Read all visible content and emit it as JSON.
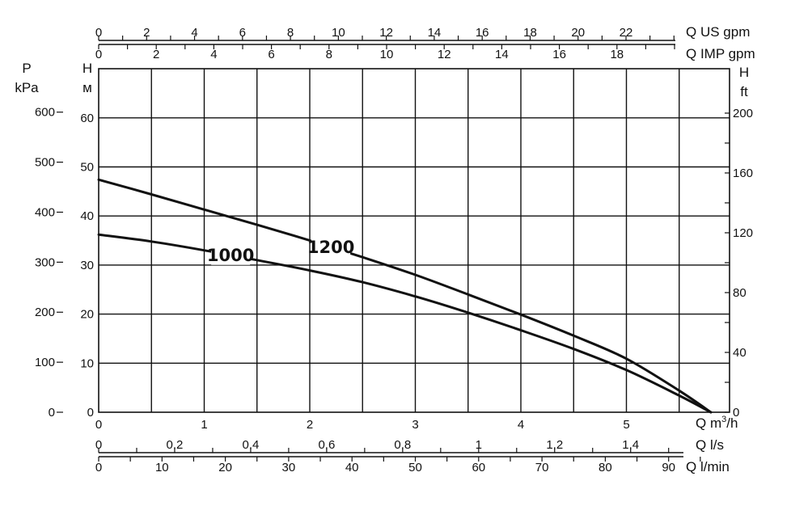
{
  "chart_data": {
    "type": "line",
    "grid": true,
    "x_primary": {
      "unit": "m³/h",
      "label_prefix": "Q m",
      "label_sup": "3",
      "label_suffix": "/h",
      "range": [
        0,
        5.8
      ],
      "ticks": [
        0,
        1,
        2,
        3,
        4,
        5
      ],
      "tick_labels": [
        "0",
        "1",
        "2",
        "3",
        "4",
        "5"
      ],
      "gridlines": [
        0.5,
        1,
        1.5,
        2,
        2.5,
        3,
        3.5,
        4,
        4.5,
        5,
        5.5
      ]
    },
    "x_ls": {
      "label": "Q l/s",
      "factor": 3.6,
      "ticks": [
        0,
        0.2,
        0.4,
        0.6,
        0.8,
        1,
        1.2,
        1.4
      ],
      "tick_labels": [
        "0",
        "0,2",
        "0,4",
        "0,6",
        "0,8",
        "1",
        "1,2",
        "1,4"
      ],
      "minor": [
        0.1,
        0.3,
        0.5,
        0.7,
        0.9,
        1.1,
        1.3,
        1.5
      ]
    },
    "x_lmin": {
      "label": "Q l/min",
      "factor": 0.06,
      "ticks": [
        0,
        10,
        20,
        30,
        40,
        50,
        60,
        70,
        80,
        90
      ],
      "tick_labels": [
        "0",
        "10",
        "20",
        "30",
        "40",
        "50",
        "60",
        "70",
        "80",
        "90"
      ],
      "minor": [
        5,
        15,
        25,
        35,
        45,
        55,
        65,
        75,
        85,
        95
      ]
    },
    "x_usgpm": {
      "label": "Q US gpm",
      "factor": 0.2271,
      "ticks": [
        0,
        2,
        4,
        6,
        8,
        10,
        12,
        14,
        16,
        18,
        20,
        22
      ],
      "tick_labels": [
        "0",
        "2",
        "4",
        "6",
        "8",
        "10",
        "12",
        "14",
        "16",
        "18",
        "20",
        "22"
      ],
      "minor": [
        1,
        3,
        5,
        7,
        9,
        11,
        13,
        15,
        17,
        19,
        21,
        23,
        24
      ]
    },
    "x_impgpm": {
      "label": "Q IMP gpm",
      "factor": 0.2728,
      "ticks": [
        0,
        2,
        4,
        6,
        8,
        10,
        12,
        14,
        16,
        18
      ],
      "tick_labels": [
        "0",
        "2",
        "4",
        "6",
        "8",
        "10",
        "12",
        "14",
        "16",
        "18"
      ],
      "minor": [
        1,
        3,
        5,
        7,
        9,
        11,
        13,
        15,
        17,
        19,
        20
      ]
    },
    "y_head_m": {
      "title": "H",
      "unit": "м",
      "range": [
        0,
        70
      ],
      "ticks": [
        0,
        10,
        20,
        30,
        40,
        50,
        60
      ],
      "tick_labels": [
        "0",
        "10",
        "20",
        "30",
        "40",
        "50",
        "60"
      ],
      "gridlines": [
        10,
        20,
        30,
        40,
        50,
        60
      ]
    },
    "y_pressure_kpa": {
      "title": "P",
      "unit": "kPa",
      "factor": 9.81,
      "ticks": [
        0,
        100,
        200,
        300,
        400,
        500,
        600
      ],
      "tick_labels": [
        "0",
        "100",
        "200",
        "300",
        "400",
        "500",
        "600"
      ]
    },
    "y_head_ft": {
      "title": "H",
      "unit": "ft",
      "factor": 3.2808,
      "ticks": [
        0,
        40,
        80,
        120,
        160,
        200
      ],
      "tick_labels": [
        "0",
        "40",
        "80",
        "120",
        "160",
        "200"
      ],
      "minor": [
        20,
        60,
        100,
        140,
        180
      ]
    },
    "series": [
      {
        "name": "1000",
        "x": [
          0,
          0.5,
          1.0,
          1.5,
          2.0,
          2.5,
          3.0,
          3.5,
          4.0,
          4.5,
          5.0,
          5.5,
          5.8
        ],
        "y": [
          36.2,
          34.8,
          33.0,
          31.0,
          28.9,
          26.5,
          23.6,
          20.3,
          16.7,
          12.9,
          8.6,
          3.4,
          0
        ]
      },
      {
        "name": "1200",
        "x": [
          0,
          0.5,
          1.0,
          1.5,
          2.0,
          2.5,
          3.0,
          3.5,
          4.0,
          4.5,
          5.0,
          5.5,
          5.8
        ],
        "y": [
          47.4,
          44.4,
          41.3,
          38.2,
          35.0,
          31.6,
          28.0,
          24.0,
          19.9,
          15.6,
          10.9,
          4.4,
          0
        ]
      }
    ]
  }
}
